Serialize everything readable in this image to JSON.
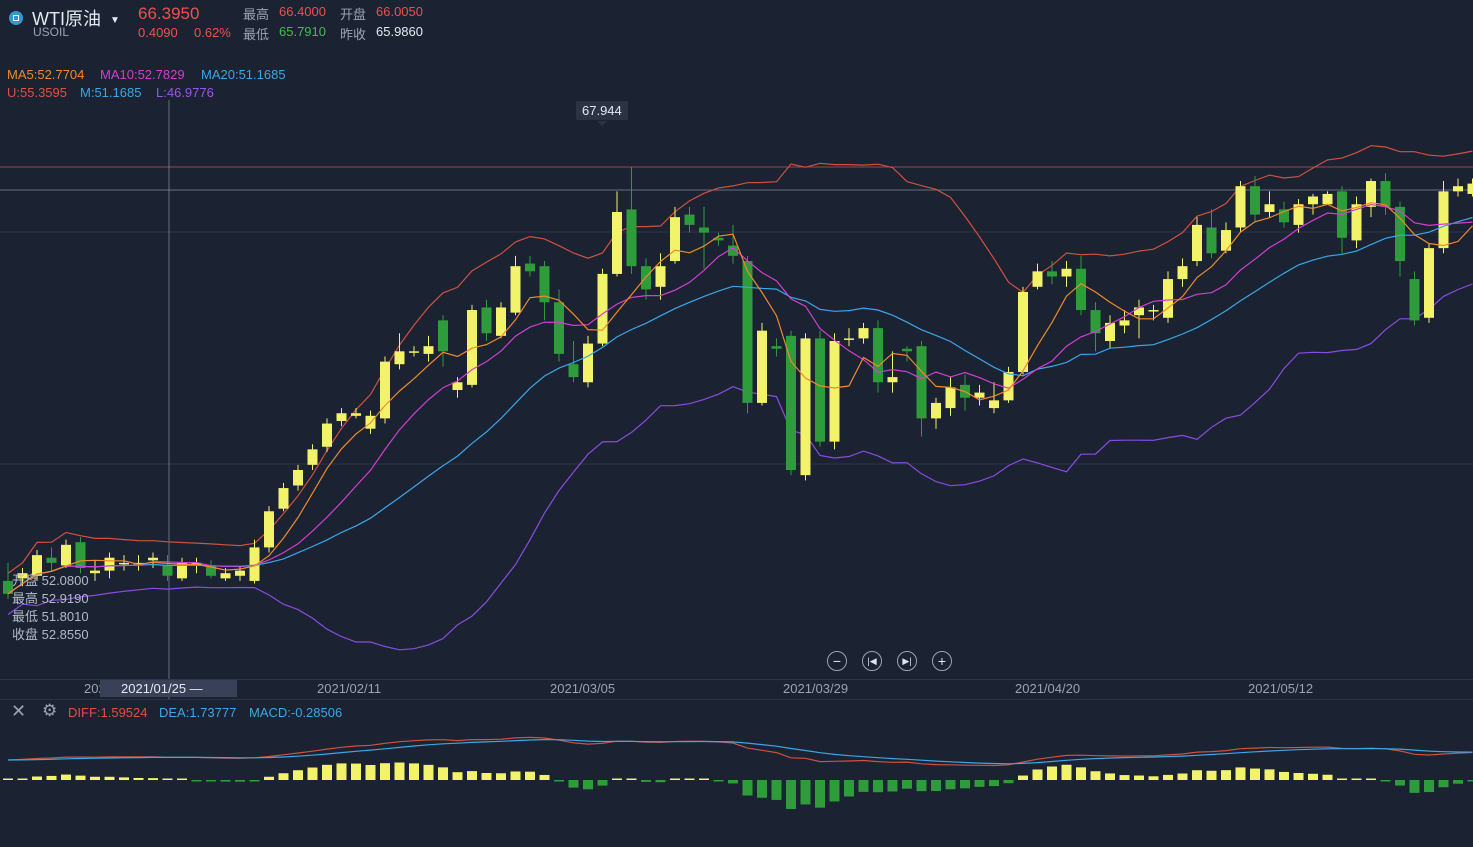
{
  "header": {
    "name": "WTI原油",
    "code": "USOIL",
    "price": "66.3950",
    "change": "0.4090",
    "change_pct": "0.62%",
    "high_label": "最高",
    "high": "66.4000",
    "open_label": "开盘",
    "open": "66.0050",
    "low_label": "最低",
    "low": "65.7910",
    "prev_label": "昨收",
    "prev": "65.9860"
  },
  "ma": {
    "ma5": "MA5:52.7704",
    "ma10": "MA10:52.7829",
    "ma20": "MA20:51.1685"
  },
  "boll": {
    "u": "U:55.3595",
    "m": "M:51.1685",
    "l": "L:46.9776"
  },
  "tooltip_high": "67.944",
  "ohlc_panel": {
    "open": "开盘 52.0800",
    "high": "最高 52.9190",
    "low": "最低 51.8010",
    "close": "收盘 52.8550"
  },
  "dates": {
    "first_partial": "202",
    "cursor": "2021/01/25 —",
    "d1": "2021/02/11",
    "d2": "2021/03/05",
    "d3": "2021/03/29",
    "d4": "2021/04/20",
    "d5": "2021/05/12"
  },
  "macd": {
    "diff": "DIFF:1.59524",
    "dea": "DEA:1.73777",
    "macd": "MACD:-0.28506"
  },
  "colors": {
    "up": "#f3f36b",
    "down": "#2e9c3a",
    "ma5": "#f08a2b",
    "ma10": "#d23fd0",
    "ma20": "#3aa7e8",
    "upper": "#d0513f",
    "lower": "#8a4be0"
  },
  "icons": {
    "zoom_out": "minus-icon",
    "prev": "skip-back-icon",
    "next": "skip-forward-icon",
    "zoom_in": "plus-icon",
    "close": "close-icon",
    "settings": "gear-icon"
  },
  "chart_data": {
    "type": "candlestick",
    "symbol": "USOIL",
    "x_ticks": [
      "2021/02/11",
      "2021/03/05",
      "2021/03/29",
      "2021/04/20",
      "2021/05/12"
    ],
    "max_marker": 67.944,
    "ohlc": [
      [
        51.9,
        51.4,
        52.6,
        51.2
      ],
      [
        52.0,
        52.2,
        52.4,
        51.7
      ],
      [
        52.1,
        52.9,
        53.1,
        51.9
      ],
      [
        52.8,
        52.6,
        53.2,
        52.3
      ],
      [
        52.5,
        53.3,
        53.5,
        52.4
      ],
      [
        53.4,
        52.4,
        53.6,
        52.2
      ],
      [
        52.2,
        52.3,
        52.7,
        51.9
      ],
      [
        52.3,
        52.8,
        53.0,
        52.0
      ],
      [
        52.6,
        52.6,
        52.9,
        52.3
      ],
      [
        52.6,
        52.6,
        52.9,
        52.3
      ],
      [
        52.7,
        52.8,
        53.0,
        52.4
      ],
      [
        52.5,
        52.1,
        52.9,
        51.9
      ],
      [
        52.0,
        52.6,
        52.8,
        51.9
      ],
      [
        52.5,
        52.6,
        52.8,
        52.2
      ],
      [
        52.5,
        52.1,
        52.7,
        52.0
      ],
      [
        52.0,
        52.2,
        52.4,
        51.9
      ],
      [
        52.1,
        52.3,
        52.5,
        51.9
      ],
      [
        51.9,
        53.2,
        53.5,
        51.8
      ],
      [
        53.2,
        54.6,
        54.8,
        53.0
      ],
      [
        54.7,
        55.5,
        55.7,
        54.6
      ],
      [
        55.6,
        56.2,
        56.4,
        55.4
      ],
      [
        56.4,
        57.0,
        57.2,
        56.2
      ],
      [
        57.1,
        58.0,
        58.2,
        56.9
      ],
      [
        58.1,
        58.4,
        58.6,
        57.9
      ],
      [
        58.3,
        58.4,
        58.6,
        58.2
      ],
      [
        57.8,
        58.3,
        58.5,
        57.6
      ],
      [
        58.2,
        60.4,
        60.6,
        58.0
      ],
      [
        60.3,
        60.8,
        61.5,
        60.1
      ],
      [
        60.8,
        60.8,
        61.0,
        60.6
      ],
      [
        60.7,
        61.0,
        61.4,
        60.4
      ],
      [
        62.0,
        60.8,
        62.2,
        60.2
      ],
      [
        59.3,
        59.6,
        59.8,
        59.0
      ],
      [
        59.5,
        62.4,
        62.6,
        59.4
      ],
      [
        62.5,
        61.5,
        62.8,
        61.2
      ],
      [
        61.4,
        62.5,
        62.7,
        61.3
      ],
      [
        62.3,
        64.1,
        64.5,
        62.2
      ],
      [
        64.2,
        63.9,
        64.5,
        63.7
      ],
      [
        64.1,
        62.7,
        64.3,
        62.0
      ],
      [
        62.7,
        60.7,
        63.2,
        60.4
      ],
      [
        60.3,
        59.8,
        61.2,
        59.6
      ],
      [
        59.6,
        61.1,
        61.4,
        59.4
      ],
      [
        61.1,
        63.8,
        64.0,
        61.0
      ],
      [
        63.8,
        66.2,
        67.0,
        63.7
      ],
      [
        66.3,
        64.1,
        67.944,
        63.8
      ],
      [
        64.1,
        63.2,
        64.4,
        62.8
      ],
      [
        63.3,
        64.1,
        64.6,
        62.8
      ],
      [
        64.3,
        66.0,
        66.4,
        64.2
      ],
      [
        66.1,
        65.7,
        66.4,
        65.4
      ],
      [
        65.6,
        65.4,
        66.4,
        64.0
      ],
      [
        65.2,
        65.1,
        65.4,
        64.9
      ],
      [
        64.9,
        64.5,
        65.7,
        64.2
      ],
      [
        64.3,
        58.8,
        64.5,
        58.4
      ],
      [
        58.8,
        61.6,
        61.9,
        58.7
      ],
      [
        61.0,
        60.9,
        61.3,
        60.6
      ],
      [
        61.4,
        56.2,
        61.6,
        56.0
      ],
      [
        56.0,
        61.3,
        61.5,
        55.8
      ],
      [
        61.3,
        57.3,
        61.6,
        57.1
      ],
      [
        57.3,
        61.2,
        61.5,
        57.0
      ],
      [
        61.3,
        61.3,
        61.7,
        61.0
      ],
      [
        61.3,
        61.7,
        61.9,
        61.1
      ],
      [
        61.7,
        59.6,
        62.0,
        59.2
      ],
      [
        59.6,
        59.8,
        60.8,
        59.2
      ],
      [
        60.9,
        60.8,
        61.0,
        60.4
      ],
      [
        61.0,
        58.2,
        61.2,
        57.5
      ],
      [
        58.2,
        58.8,
        59.0,
        57.8
      ],
      [
        58.6,
        59.4,
        59.8,
        58.3
      ],
      [
        59.5,
        59.0,
        59.9,
        58.5
      ],
      [
        59.0,
        59.2,
        59.5,
        58.7
      ],
      [
        58.6,
        58.9,
        59.6,
        58.4
      ],
      [
        58.9,
        60.0,
        60.2,
        58.8
      ],
      [
        60.0,
        63.1,
        63.3,
        59.9
      ],
      [
        63.3,
        63.9,
        64.2,
        63.2
      ],
      [
        63.9,
        63.7,
        64.3,
        63.4
      ],
      [
        63.7,
        64.0,
        64.3,
        63.3
      ],
      [
        64.0,
        62.4,
        64.5,
        62.2
      ],
      [
        62.4,
        61.5,
        62.7,
        60.8
      ],
      [
        61.2,
        61.9,
        62.2,
        60.9
      ],
      [
        61.8,
        62.0,
        62.4,
        61.5
      ],
      [
        62.2,
        62.5,
        62.8,
        61.3
      ],
      [
        62.4,
        62.4,
        62.6,
        62.0
      ],
      [
        62.1,
        63.6,
        63.9,
        61.9
      ],
      [
        63.6,
        64.1,
        64.4,
        63.3
      ],
      [
        64.3,
        65.7,
        66.0,
        64.1
      ],
      [
        65.6,
        64.6,
        66.3,
        64.4
      ],
      [
        64.7,
        65.5,
        65.8,
        64.6
      ],
      [
        65.6,
        67.2,
        67.4,
        65.4
      ],
      [
        67.2,
        66.1,
        67.6,
        65.8
      ],
      [
        66.2,
        66.5,
        67.0,
        66.0
      ],
      [
        66.3,
        65.8,
        66.6,
        65.6
      ],
      [
        65.7,
        66.5,
        66.7,
        65.4
      ],
      [
        66.5,
        66.8,
        66.9,
        66.1
      ],
      [
        66.5,
        66.9,
        67.0,
        66.5
      ],
      [
        67.0,
        65.2,
        67.2,
        64.6
      ],
      [
        65.1,
        66.5,
        66.8,
        64.8
      ],
      [
        66.4,
        67.4,
        67.5,
        66.0
      ],
      [
        67.4,
        66.4,
        67.7,
        66.1
      ],
      [
        66.4,
        64.3,
        66.6,
        63.7
      ],
      [
        63.6,
        62.0,
        63.9,
        61.8
      ],
      [
        62.1,
        64.8,
        65.0,
        61.9
      ],
      [
        64.8,
        67.0,
        67.4,
        64.6
      ],
      [
        67.0,
        67.2,
        67.5,
        66.8
      ],
      [
        66.9,
        67.3,
        67.5,
        66.8
      ]
    ]
  }
}
